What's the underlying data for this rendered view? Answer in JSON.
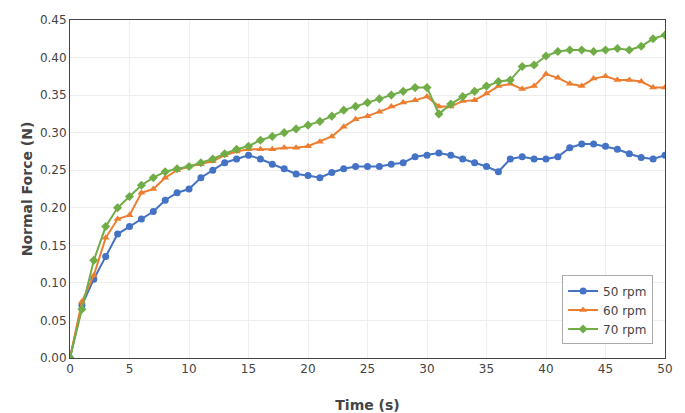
{
  "chart_data": {
    "type": "line",
    "xlabel": "Time (s)",
    "ylabel": "Normal Force (N)",
    "x": [
      0,
      1,
      2,
      3,
      4,
      5,
      6,
      7,
      8,
      9,
      10,
      11,
      12,
      13,
      14,
      15,
      16,
      17,
      18,
      19,
      20,
      21,
      22,
      23,
      24,
      25,
      26,
      27,
      28,
      29,
      30,
      31,
      32,
      33,
      34,
      35,
      36,
      37,
      38,
      39,
      40,
      41,
      42,
      43,
      44,
      45,
      46,
      47,
      48,
      49,
      50
    ],
    "series": [
      {
        "name": "50 rpm",
        "color": "#4472C4",
        "marker": "circle",
        "values": [
          0.0,
          0.07,
          0.105,
          0.135,
          0.165,
          0.175,
          0.185,
          0.195,
          0.21,
          0.22,
          0.225,
          0.24,
          0.25,
          0.26,
          0.265,
          0.27,
          0.265,
          0.258,
          0.252,
          0.245,
          0.243,
          0.24,
          0.247,
          0.252,
          0.255,
          0.255,
          0.255,
          0.258,
          0.26,
          0.268,
          0.27,
          0.273,
          0.27,
          0.265,
          0.26,
          0.255,
          0.248,
          0.265,
          0.268,
          0.265,
          0.265,
          0.268,
          0.28,
          0.285,
          0.285,
          0.282,
          0.278,
          0.272,
          0.267,
          0.265,
          0.27
        ]
      },
      {
        "name": "60 rpm",
        "color": "#ED7D31",
        "marker": "triangle-up",
        "values": [
          0.0,
          0.075,
          0.11,
          0.16,
          0.185,
          0.19,
          0.22,
          0.225,
          0.24,
          0.25,
          0.255,
          0.258,
          0.262,
          0.27,
          0.275,
          0.278,
          0.278,
          0.278,
          0.28,
          0.28,
          0.282,
          0.288,
          0.295,
          0.308,
          0.318,
          0.322,
          0.328,
          0.335,
          0.34,
          0.343,
          0.348,
          0.335,
          0.335,
          0.342,
          0.343,
          0.352,
          0.362,
          0.365,
          0.358,
          0.362,
          0.378,
          0.373,
          0.365,
          0.362,
          0.372,
          0.375,
          0.37,
          0.37,
          0.368,
          0.36,
          0.36
        ]
      },
      {
        "name": "70 rpm",
        "color": "#70AD47",
        "marker": "diamond",
        "values": [
          0.0,
          0.065,
          0.13,
          0.175,
          0.2,
          0.215,
          0.23,
          0.24,
          0.248,
          0.252,
          0.255,
          0.26,
          0.265,
          0.272,
          0.278,
          0.282,
          0.29,
          0.295,
          0.3,
          0.305,
          0.31,
          0.315,
          0.322,
          0.33,
          0.335,
          0.34,
          0.345,
          0.35,
          0.355,
          0.36,
          0.36,
          0.325,
          0.338,
          0.348,
          0.355,
          0.362,
          0.368,
          0.37,
          0.388,
          0.39,
          0.402,
          0.408,
          0.41,
          0.41,
          0.408,
          0.41,
          0.412,
          0.41,
          0.415,
          0.425,
          0.43
        ]
      }
    ],
    "xlim": [
      0,
      50
    ],
    "xticks": [
      0,
      5,
      10,
      15,
      20,
      25,
      30,
      35,
      40,
      45,
      50
    ],
    "ylim": [
      0,
      0.45
    ],
    "yticks": [
      {
        "value": 0,
        "label": "0.00"
      },
      0.05,
      {
        "value": 0.1,
        "label": "0.10"
      },
      0.15,
      {
        "value": 0.2,
        "label": "0.20"
      },
      0.25,
      {
        "value": 0.3,
        "label": "0.30"
      },
      0.35,
      {
        "value": 0.4,
        "label": "0.40"
      },
      0.45
    ],
    "grid": true,
    "legend": "lower right"
  }
}
